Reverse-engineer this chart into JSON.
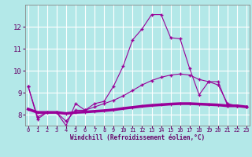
{
  "xlabel": "Windchill (Refroidissement éolien,°C)",
  "background_color": "#b3e8e8",
  "grid_color": "#ffffff",
  "line_color": "#990099",
  "x": [
    0,
    1,
    2,
    3,
    4,
    5,
    6,
    7,
    8,
    9,
    10,
    11,
    12,
    13,
    14,
    15,
    16,
    17,
    18,
    19,
    20,
    21,
    22,
    23
  ],
  "line1": [
    9.3,
    7.8,
    8.1,
    8.1,
    7.5,
    8.5,
    8.2,
    8.5,
    8.6,
    9.3,
    10.2,
    11.4,
    11.9,
    12.55,
    12.55,
    11.5,
    11.45,
    10.1,
    8.9,
    9.5,
    9.5,
    8.4,
    8.4,
    8.35
  ],
  "line2": [
    9.3,
    7.9,
    8.1,
    8.1,
    7.7,
    8.2,
    8.2,
    8.35,
    8.5,
    8.65,
    8.85,
    9.1,
    9.35,
    9.55,
    9.7,
    9.8,
    9.85,
    9.8,
    9.6,
    9.5,
    9.35,
    8.5,
    8.4,
    8.35
  ],
  "line3": [
    8.25,
    8.1,
    8.1,
    8.1,
    8.05,
    8.1,
    8.12,
    8.15,
    8.18,
    8.22,
    8.28,
    8.33,
    8.38,
    8.42,
    8.45,
    8.48,
    8.5,
    8.5,
    8.48,
    8.46,
    8.44,
    8.4,
    8.4,
    8.35
  ],
  "ylim": [
    7.5,
    13.0
  ],
  "yticks": [
    8,
    9,
    10,
    11,
    12
  ],
  "xticks": [
    0,
    1,
    2,
    3,
    4,
    5,
    6,
    7,
    8,
    9,
    10,
    11,
    12,
    13,
    14,
    15,
    16,
    17,
    18,
    19,
    20,
    21,
    22,
    23
  ]
}
